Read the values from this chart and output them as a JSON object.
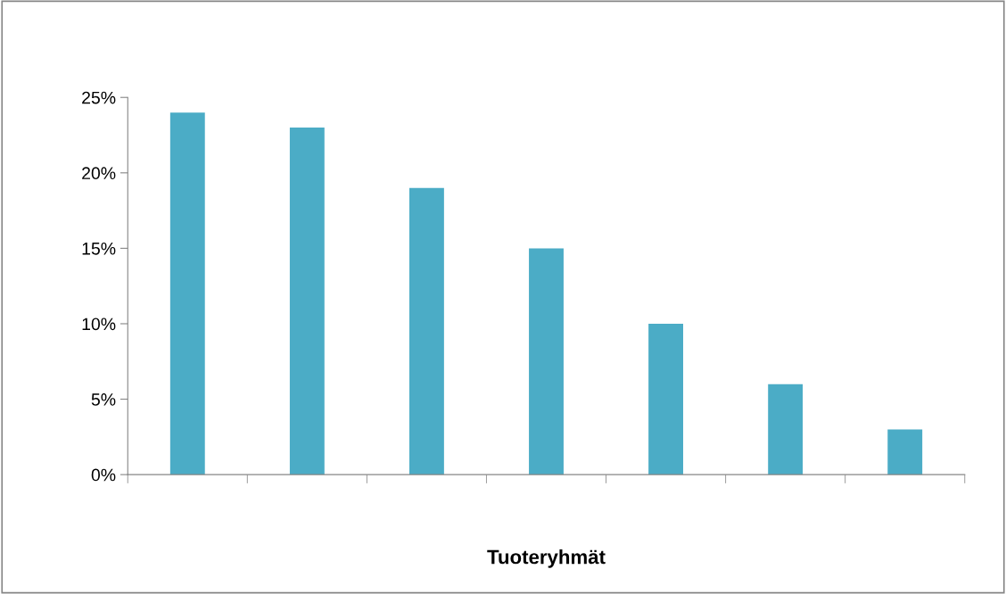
{
  "chart_data": {
    "type": "bar",
    "xlabel": "Tuoteryhmät",
    "categories": [
      null,
      null,
      null,
      null,
      null,
      null,
      null
    ],
    "values": [
      24,
      23,
      19,
      15,
      10,
      6,
      3
    ],
    "color": "#4bacc6",
    "ylim": [
      0,
      25
    ],
    "yticks": [
      {
        "value": 0,
        "label": "0%"
      },
      {
        "value": 5,
        "label": "5%"
      },
      {
        "value": 10,
        "label": "10%"
      },
      {
        "value": 15,
        "label": "15%"
      },
      {
        "value": 20,
        "label": "20%"
      },
      {
        "value": 25,
        "label": "25%"
      }
    ]
  }
}
